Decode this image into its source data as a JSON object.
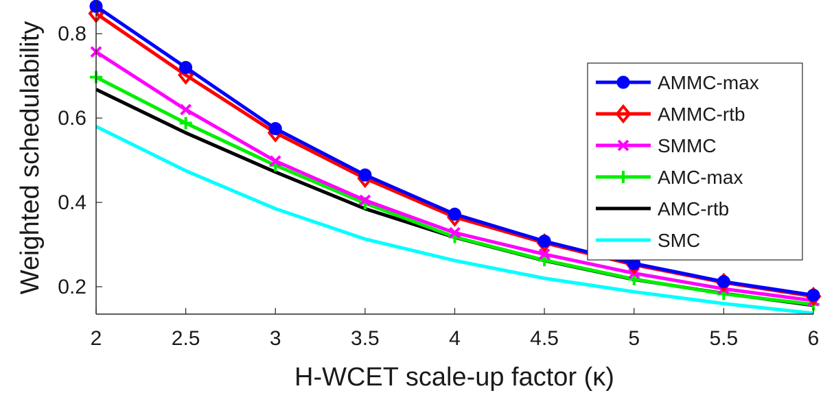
{
  "chart_data": {
    "type": "line",
    "title": "",
    "xlabel": "H-WCET scale-up factor (κ)",
    "ylabel": "Weighted schedulability",
    "xlim": [
      2,
      6
    ],
    "ylim": [
      0.135,
      0.88
    ],
    "xticks": [
      2,
      2.5,
      3,
      3.5,
      4,
      4.5,
      5,
      5.5,
      6
    ],
    "xtick_labels": [
      "2",
      "2.5",
      "3",
      "3.5",
      "4",
      "4.5",
      "5",
      "5.5",
      "6"
    ],
    "yticks": [
      0.2,
      0.4,
      0.6,
      0.8
    ],
    "ytick_labels": [
      "0.2",
      "0.4",
      "0.6",
      "0.8"
    ],
    "legend_position": "top-right",
    "grid": false,
    "x": [
      2,
      2.5,
      3,
      3.5,
      4,
      4.5,
      5,
      5.5,
      6
    ],
    "series": [
      {
        "name": "AMMC-max",
        "color": "#0000ff",
        "marker": "circle",
        "values": [
          0.865,
          0.72,
          0.575,
          0.465,
          0.372,
          0.308,
          0.255,
          0.212,
          0.18
        ]
      },
      {
        "name": "AMMC-rtb",
        "color": "#ff0000",
        "marker": "diamond",
        "values": [
          0.848,
          0.702,
          0.565,
          0.457,
          0.365,
          0.304,
          0.252,
          0.21,
          0.177
        ]
      },
      {
        "name": "SMMC",
        "color": "#ff00ff",
        "marker": "x",
        "values": [
          0.757,
          0.62,
          0.498,
          0.405,
          0.328,
          0.277,
          0.232,
          0.195,
          0.167
        ]
      },
      {
        "name": "AMC-max",
        "color": "#00ee00",
        "marker": "plus",
        "values": [
          0.697,
          0.588,
          0.488,
          0.398,
          0.318,
          0.263,
          0.218,
          0.183,
          0.158
        ]
      },
      {
        "name": "AMC-rtb",
        "color": "#000000",
        "marker": "none",
        "values": [
          0.668,
          0.565,
          0.472,
          0.385,
          0.317,
          0.262,
          0.217,
          0.184,
          0.156
        ]
      },
      {
        "name": "SMC",
        "color": "#00ffff",
        "marker": "none",
        "values": [
          0.58,
          0.475,
          0.385,
          0.313,
          0.262,
          0.22,
          0.188,
          0.16,
          0.137
        ]
      }
    ]
  }
}
